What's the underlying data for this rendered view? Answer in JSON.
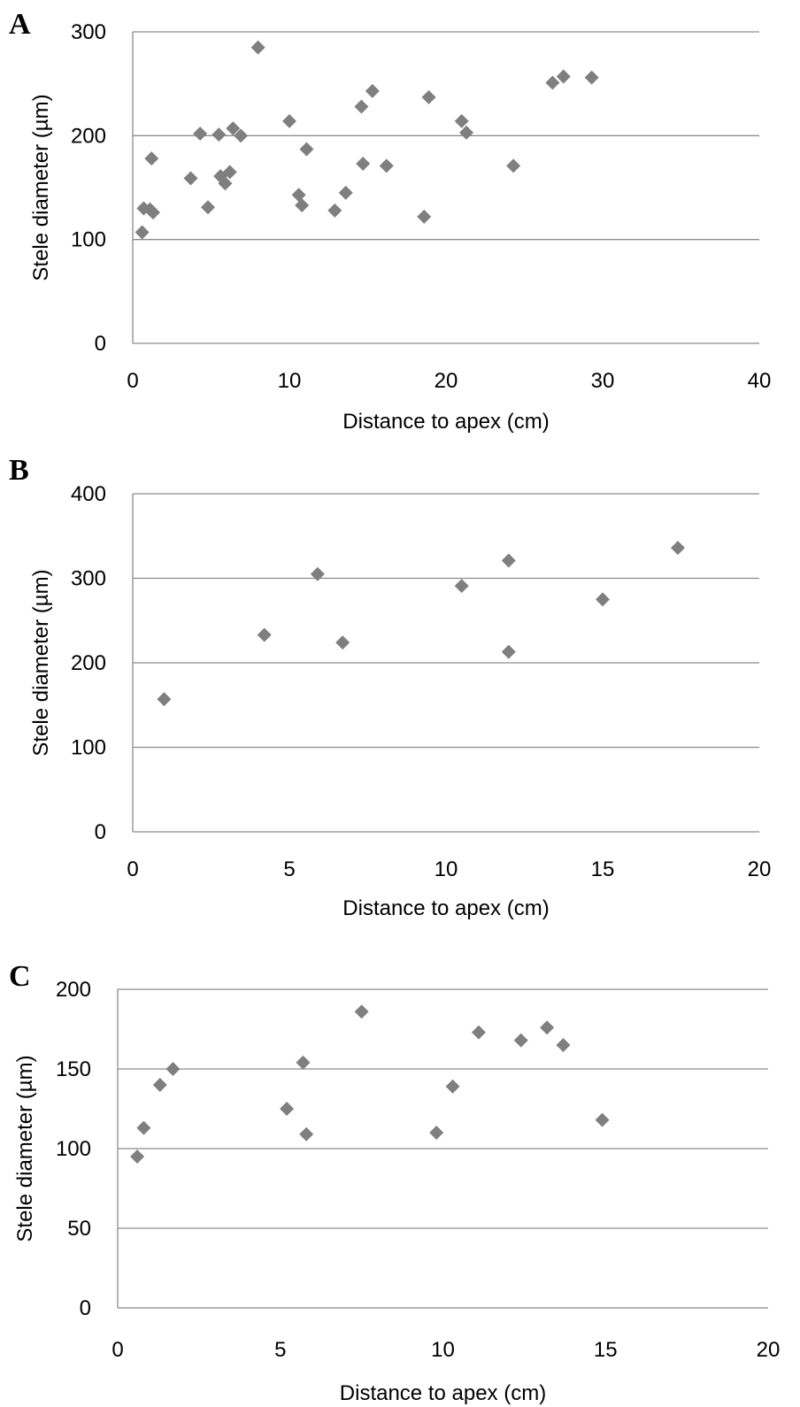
{
  "colors": {
    "marker": "#7f7f7f",
    "grid": "#8c8c8c"
  },
  "chart_data": [
    {
      "type": "scatter",
      "panel_label": "A",
      "xlabel": "Distance to apex (cm)",
      "ylabel": "Stele diameter (µm)",
      "xlim": [
        0,
        40
      ],
      "ylim": [
        0,
        300
      ],
      "xticks": [
        0,
        10,
        20,
        30,
        40
      ],
      "yticks": [
        0,
        100,
        200,
        300
      ],
      "grid": "horizontal",
      "points": [
        [
          0.6,
          107
        ],
        [
          0.7,
          130
        ],
        [
          1.1,
          129
        ],
        [
          1.2,
          178
        ],
        [
          1.3,
          126
        ],
        [
          3.7,
          159
        ],
        [
          4.3,
          202
        ],
        [
          4.8,
          131
        ],
        [
          5.5,
          201
        ],
        [
          5.6,
          161
        ],
        [
          5.9,
          154
        ],
        [
          6.2,
          165
        ],
        [
          6.4,
          207
        ],
        [
          6.9,
          200
        ],
        [
          8.0,
          285
        ],
        [
          10.0,
          214
        ],
        [
          10.6,
          143
        ],
        [
          10.8,
          133
        ],
        [
          11.1,
          187
        ],
        [
          12.9,
          128
        ],
        [
          13.6,
          145
        ],
        [
          14.6,
          228
        ],
        [
          14.7,
          173
        ],
        [
          15.3,
          243
        ],
        [
          16.2,
          171
        ],
        [
          18.6,
          122
        ],
        [
          18.9,
          237
        ],
        [
          21.0,
          214
        ],
        [
          21.3,
          203
        ],
        [
          24.3,
          171
        ],
        [
          26.8,
          251
        ],
        [
          27.5,
          257
        ],
        [
          29.3,
          256
        ]
      ]
    },
    {
      "type": "scatter",
      "panel_label": "B",
      "xlabel": "Distance to apex (cm)",
      "ylabel": "Stele diameter (µm)",
      "xlim": [
        0,
        20
      ],
      "ylim": [
        0,
        400
      ],
      "xticks": [
        0,
        5,
        10,
        15,
        20
      ],
      "yticks": [
        0,
        100,
        200,
        300,
        400
      ],
      "grid": "horizontal",
      "points": [
        [
          1.0,
          157
        ],
        [
          4.2,
          233
        ],
        [
          5.9,
          305
        ],
        [
          6.7,
          224
        ],
        [
          10.5,
          291
        ],
        [
          12.0,
          321
        ],
        [
          12.0,
          213
        ],
        [
          15.0,
          275
        ],
        [
          17.4,
          336
        ]
      ]
    },
    {
      "type": "scatter",
      "panel_label": "C",
      "xlabel": "Distance to apex (cm)",
      "ylabel": "Stele diameter (µm)",
      "xlim": [
        0,
        20
      ],
      "ylim": [
        0,
        200
      ],
      "xticks": [
        0,
        5,
        10,
        15,
        20
      ],
      "yticks": [
        0,
        50,
        100,
        150,
        200
      ],
      "grid": "horizontal",
      "points": [
        [
          0.6,
          95
        ],
        [
          0.8,
          113
        ],
        [
          1.3,
          140
        ],
        [
          1.7,
          150
        ],
        [
          5.2,
          125
        ],
        [
          5.7,
          154
        ],
        [
          5.8,
          109
        ],
        [
          7.5,
          186
        ],
        [
          9.8,
          110
        ],
        [
          10.3,
          139
        ],
        [
          11.1,
          173
        ],
        [
          12.4,
          168
        ],
        [
          13.2,
          176
        ],
        [
          13.7,
          165
        ],
        [
          14.9,
          118
        ]
      ]
    }
  ]
}
